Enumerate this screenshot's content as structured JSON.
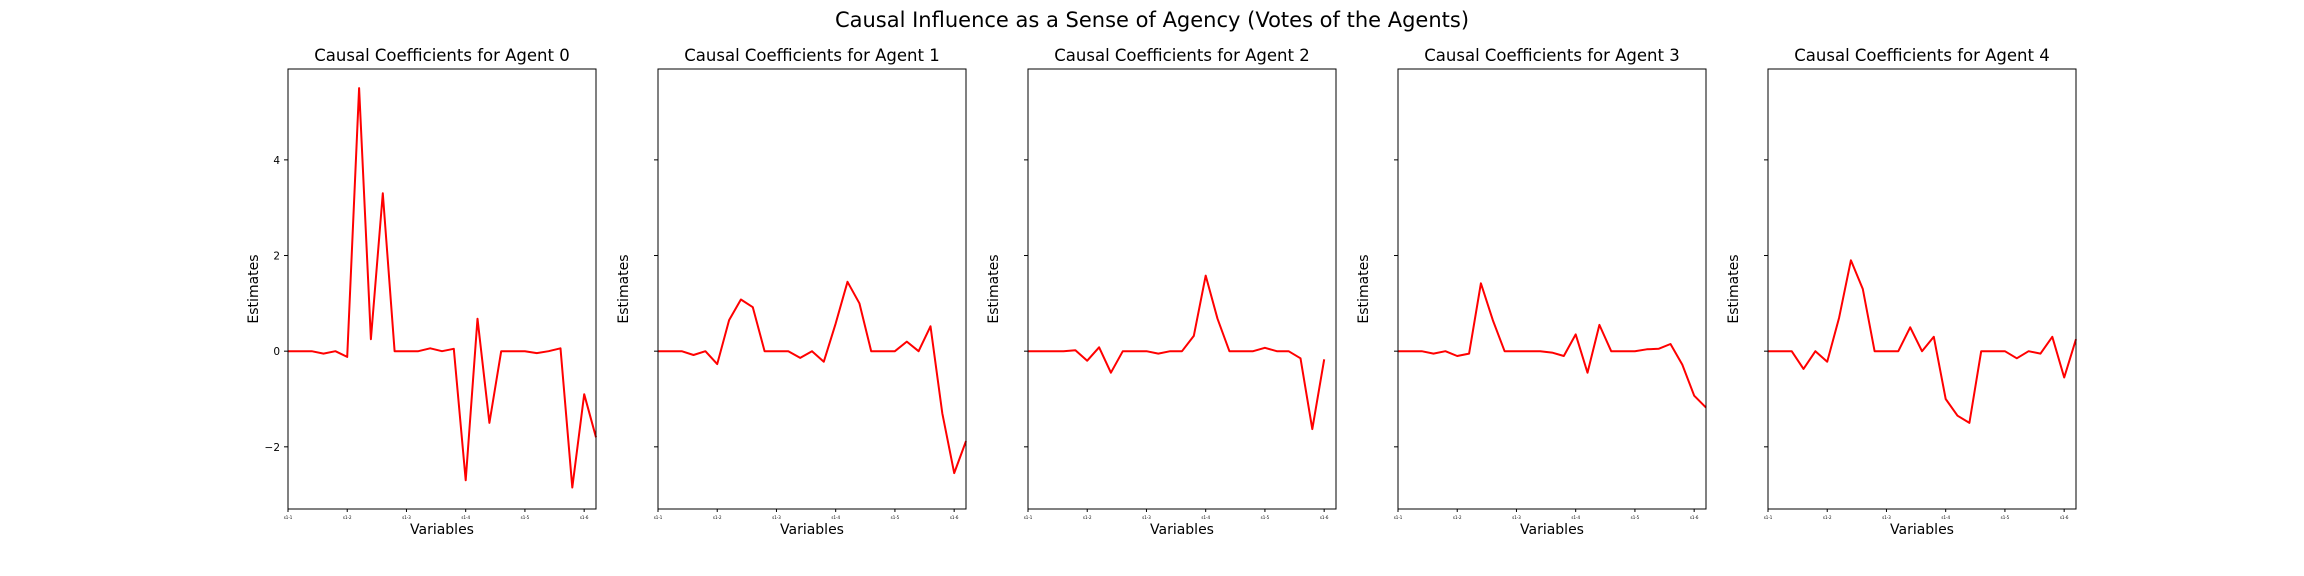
{
  "figure": {
    "suptitle": "Causal Influence as a Sense of Agency (Votes of the Agents)"
  },
  "style": {
    "line_color": "#ff0000",
    "axes_color": "#000000",
    "background": "#ffffff"
  },
  "chart_data": [
    {
      "type": "line",
      "title": "Causal Coefficients for Agent 0",
      "xlabel": "Variables",
      "ylabel": "Estimates",
      "xticklabels": [
        "s1-1",
        "s1-2",
        "s1-3",
        "s1-4",
        "s1-5",
        "s1-6"
      ],
      "xtick_positions": [
        0,
        5,
        10,
        15,
        20,
        25
      ],
      "yticks": [
        -2,
        0,
        2,
        4
      ],
      "ylim": [
        -3.3,
        5.9
      ],
      "xlim": [
        0,
        26
      ],
      "show_ytick_labels": true,
      "grid": false,
      "series": [
        {
          "values": [
            0,
            0,
            0,
            -0.05,
            0,
            -0.12,
            5.5,
            0.25,
            3.3,
            0,
            0,
            0,
            0.06,
            0,
            0.05,
            -2.7,
            0.68,
            -1.5,
            0,
            0,
            0,
            -0.04,
            0,
            0.06,
            -2.85,
            -0.9,
            -1.8
          ]
        }
      ]
    },
    {
      "type": "line",
      "title": "Causal Coefficients for Agent 1",
      "xlabel": "Variables",
      "ylabel": "Estimates",
      "xticklabels": [
        "s1-1",
        "s1-2",
        "s1-3",
        "s1-4",
        "s1-5",
        "s1-6"
      ],
      "xtick_positions": [
        0,
        5,
        10,
        15,
        20,
        25
      ],
      "yticks": [
        -2,
        0,
        2,
        4
      ],
      "ylim": [
        -3.3,
        5.9
      ],
      "xlim": [
        0,
        26
      ],
      "show_ytick_labels": false,
      "grid": false,
      "series": [
        {
          "values": [
            0,
            0,
            0,
            -0.08,
            0,
            -0.27,
            0.65,
            1.08,
            0.92,
            0,
            0,
            0,
            -0.14,
            0,
            -0.22,
            0.58,
            1.45,
            1.0,
            0,
            0,
            0,
            0.2,
            0,
            0.52,
            -1.3,
            -2.55,
            -1.88
          ]
        }
      ]
    },
    {
      "type": "line",
      "title": "Causal Coefficients for Agent 2",
      "xlabel": "Variables",
      "ylabel": "Estimates",
      "xticklabels": [
        "s1-1",
        "s1-2",
        "s1-3",
        "s1-4",
        "s1-5",
        "s1-6"
      ],
      "xtick_positions": [
        0,
        5,
        10,
        15,
        20,
        25
      ],
      "yticks": [
        -2,
        0,
        2,
        4
      ],
      "ylim": [
        -3.3,
        5.9
      ],
      "xlim": [
        0,
        26
      ],
      "show_ytick_labels": false,
      "grid": false,
      "series": [
        {
          "values": [
            0,
            0,
            0,
            0,
            0.02,
            -0.2,
            0.08,
            -0.45,
            0,
            0,
            0,
            -0.05,
            0,
            0,
            0.32,
            1.58,
            0.68,
            0,
            0,
            0,
            0.07,
            0,
            0,
            -0.15,
            -1.63,
            -0.17
          ]
        }
      ]
    },
    {
      "type": "line",
      "title": "Causal Coefficients for Agent 3",
      "xlabel": "Variables",
      "ylabel": "Estimates",
      "xticklabels": [
        "s1-1",
        "s1-2",
        "s1-3",
        "s1-4",
        "s1-5",
        "s1-6"
      ],
      "xtick_positions": [
        0,
        5,
        10,
        15,
        20,
        25
      ],
      "yticks": [
        -2,
        0,
        2,
        4
      ],
      "ylim": [
        -3.3,
        5.9
      ],
      "xlim": [
        0,
        26
      ],
      "show_ytick_labels": false,
      "grid": false,
      "series": [
        {
          "values": [
            0,
            0,
            0,
            -0.05,
            0,
            -0.1,
            -0.05,
            1.42,
            0.65,
            0,
            0,
            0,
            0,
            -0.03,
            -0.1,
            0.35,
            -0.45,
            0.55,
            0,
            0,
            0,
            0.04,
            0.05,
            0.15,
            -0.28,
            -0.93,
            -1.18
          ]
        }
      ]
    },
    {
      "type": "line",
      "title": "Causal Coefficients for Agent 4",
      "xlabel": "Variables",
      "ylabel": "Estimates",
      "xticklabels": [
        "s1-1",
        "s1-2",
        "s1-3",
        "s1-4",
        "s1-5",
        "s1-6"
      ],
      "xtick_positions": [
        0,
        5,
        10,
        15,
        20,
        25
      ],
      "yticks": [
        -2,
        0,
        2,
        4
      ],
      "ylim": [
        -3.3,
        5.9
      ],
      "xlim": [
        0,
        26
      ],
      "show_ytick_labels": false,
      "grid": false,
      "series": [
        {
          "values": [
            0,
            0,
            0,
            -0.37,
            0,
            -0.22,
            0.7,
            1.9,
            1.3,
            0,
            0,
            0,
            0.5,
            0,
            0.3,
            -1.0,
            -1.35,
            -1.5,
            0,
            0,
            0,
            -0.15,
            0,
            -0.05,
            0.3,
            -0.55,
            0.25
          ]
        }
      ]
    }
  ]
}
